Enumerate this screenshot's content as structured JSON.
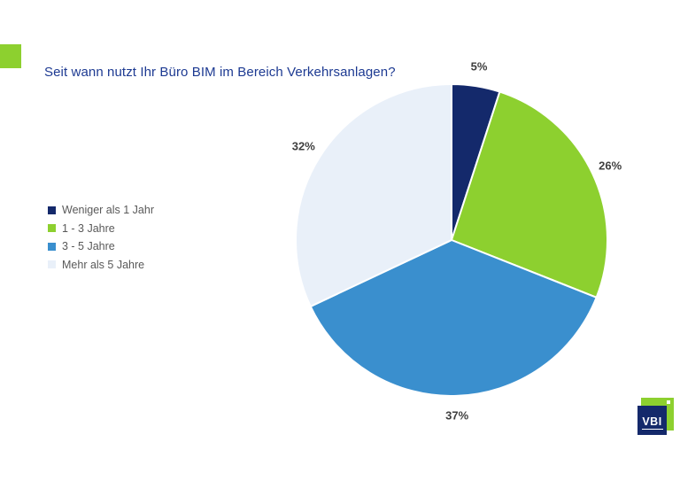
{
  "title": "Seit wann nutzt Ihr Büro BIM im Bereich Verkehrsanlagen?",
  "colors": {
    "title_text": "#1d3a92",
    "accent_green": "#8dd02f",
    "navy": "#14296b",
    "blue": "#3a8fce",
    "light_blue": "#e9f0f9",
    "percent_label_text": "#3f3f3f",
    "legend_text": "#595959"
  },
  "chart_data": {
    "type": "pie",
    "title": "Seit wann nutzt Ihr Büro BIM im Bereich Verkehrsanlagen?",
    "direction": "clockwise",
    "start_angle_deg": 0,
    "legend_position": "left",
    "categories": [
      "Weniger als 1 Jahr",
      "1 - 3 Jahre",
      "3 - 5 Jahre",
      "Mehr als 5 Jahre"
    ],
    "values": [
      5,
      26,
      37,
      32
    ],
    "slices": [
      {
        "label": "Weniger als 1 Jahr",
        "value": 5,
        "pct_label": "5%",
        "color": "#14296b"
      },
      {
        "label": "1 - 3 Jahre",
        "value": 26,
        "pct_label": "26%",
        "color": "#8dd02f"
      },
      {
        "label": "3 - 5 Jahre",
        "value": 37,
        "pct_label": "37%",
        "color": "#3a8fce"
      },
      {
        "label": "Mehr als 5 Jahre",
        "value": 32,
        "pct_label": "32%",
        "color": "#e9f0f9"
      }
    ]
  },
  "logo": {
    "text": "VBI"
  }
}
